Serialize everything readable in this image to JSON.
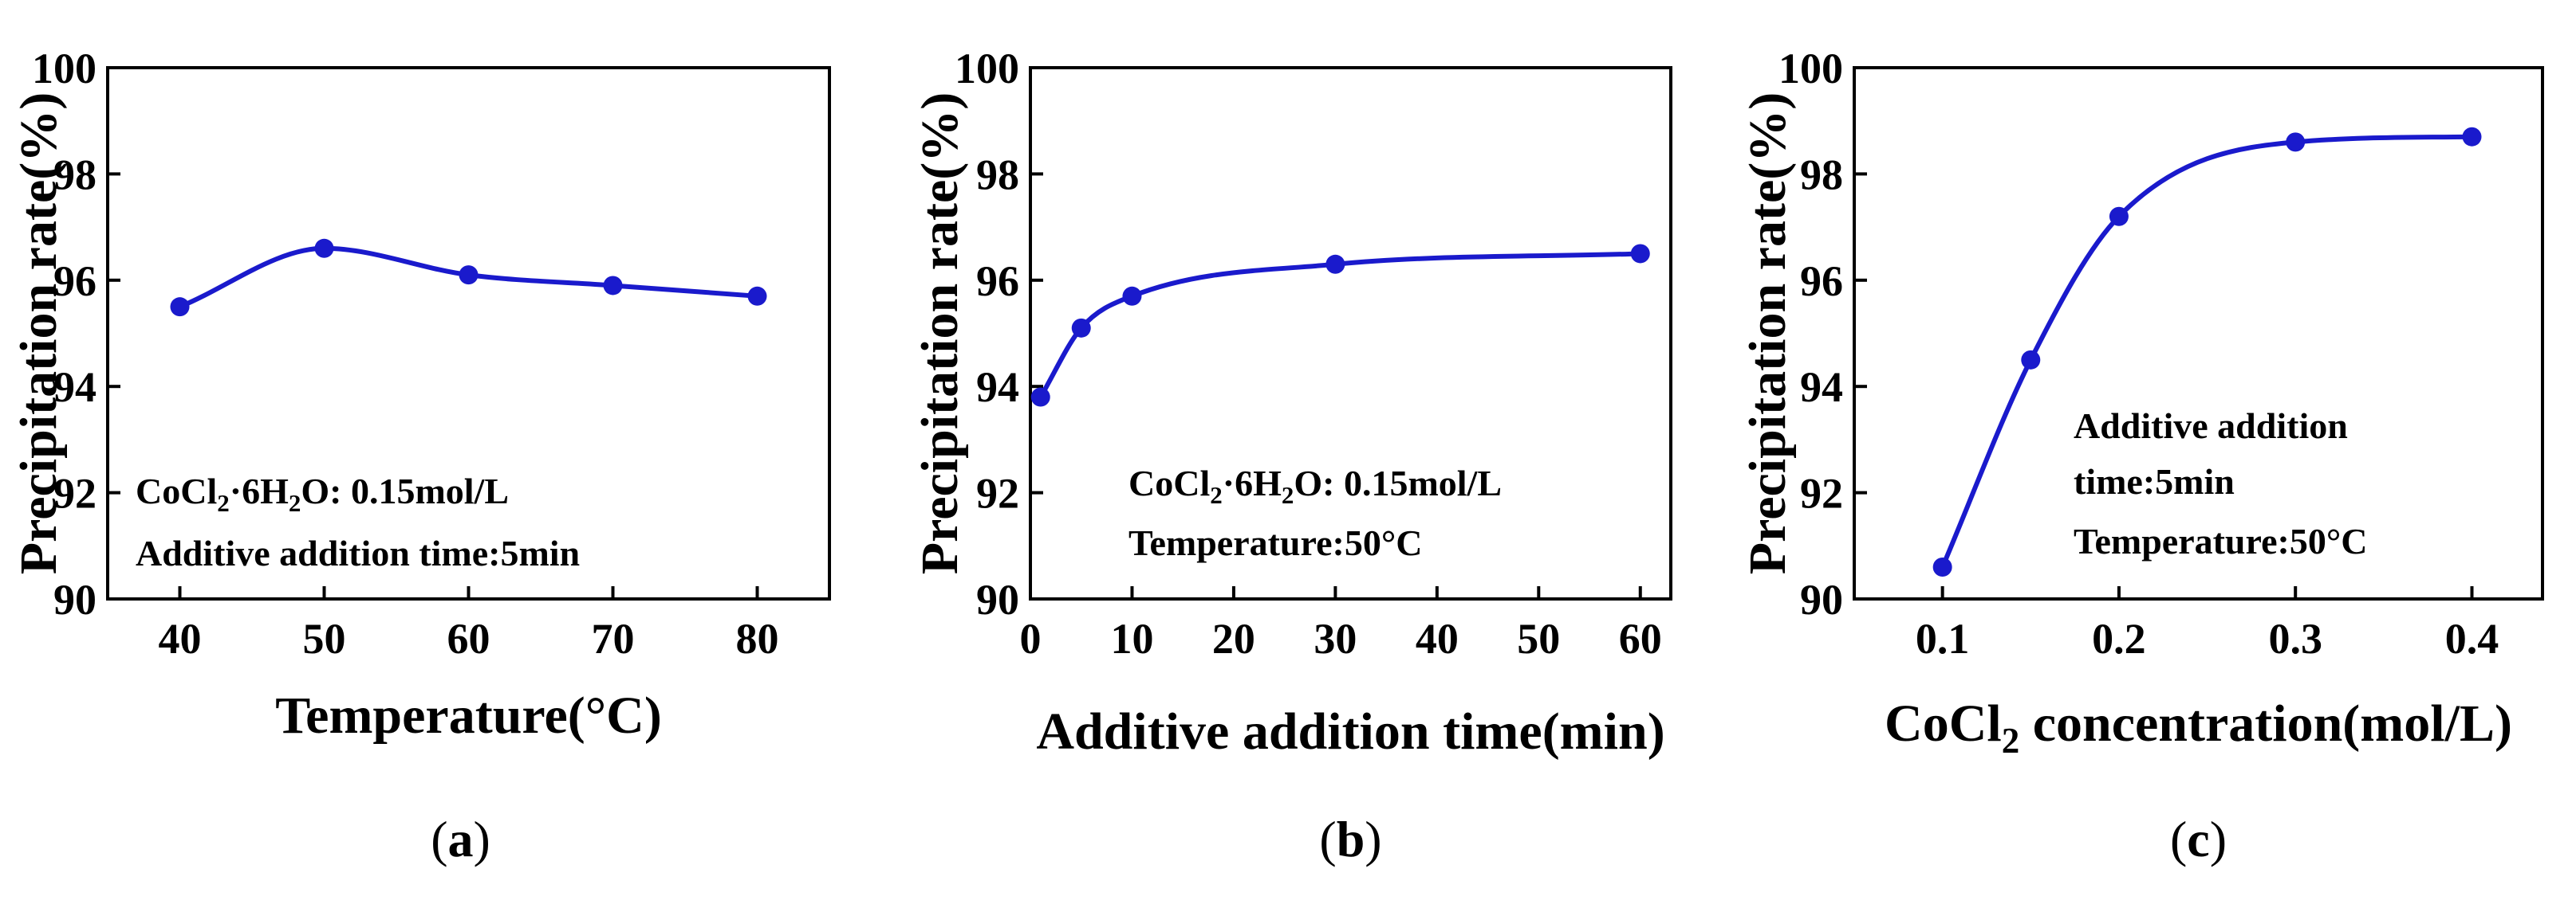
{
  "colors": {
    "series": "#1a1acc",
    "axis": "#000000"
  },
  "chart_data": [
    {
      "type": "line",
      "panel_label": "(a)",
      "x": [
        40,
        50,
        60,
        70,
        80
      ],
      "series": [
        {
          "values": [
            95.5,
            96.6,
            96.1,
            95.9,
            95.7
          ]
        }
      ],
      "xlabel": "Temperature(°C)",
      "ylabel": "Precipitation rate(%)",
      "xlim": [
        35,
        85
      ],
      "ylim": [
        90,
        100
      ],
      "xticks": [
        40,
        50,
        60,
        70,
        80
      ],
      "xtick_labels": [
        "40",
        "50",
        "60",
        "70",
        "80"
      ],
      "yticks": [
        90,
        92,
        94,
        96,
        98,
        100
      ],
      "ytick_labels": [
        "90",
        "92",
        "94",
        "96",
        "98",
        "100"
      ],
      "annotation": [
        {
          "main": "CoCl",
          "sub": "2",
          "rest": "·6H",
          "sub2": "2",
          "rest2": "O: 0.15mol/L"
        },
        {
          "main": "Additive addition time:5min"
        }
      ],
      "grid": false
    },
    {
      "type": "line",
      "panel_label": "(b)",
      "x": [
        1,
        5,
        10,
        30,
        60
      ],
      "series": [
        {
          "values": [
            93.8,
            95.1,
            95.7,
            96.3,
            96.5
          ]
        }
      ],
      "xlabel": "Additive addition time(min)",
      "ylabel": "Precipitation rate(%)",
      "xlim": [
        0,
        63
      ],
      "ylim": [
        90,
        100
      ],
      "xticks": [
        0,
        10,
        20,
        30,
        40,
        50,
        60
      ],
      "xtick_labels": [
        "0",
        "10",
        "20",
        "30",
        "40",
        "50",
        "60"
      ],
      "yticks": [
        90,
        92,
        94,
        96,
        98,
        100
      ],
      "ytick_labels": [
        "90",
        "92",
        "94",
        "96",
        "98",
        "100"
      ],
      "annotation": [
        {
          "main": "CoCl",
          "sub": "2",
          "rest": "·6H",
          "sub2": "2",
          "rest2": "O: 0.15mol/L"
        },
        {
          "main": "Temperature:50°C"
        }
      ],
      "grid": false
    },
    {
      "type": "line",
      "panel_label": "(c)",
      "x": [
        0.1,
        0.15,
        0.2,
        0.3,
        0.4
      ],
      "series": [
        {
          "values": [
            90.6,
            94.5,
            97.2,
            98.6,
            98.7
          ]
        }
      ],
      "xlabel_parts": {
        "main": "CoCl",
        "sub": "2",
        "rest": " concentration(mol/L)"
      },
      "ylabel": "Precipitation rate(%)",
      "xlim": [
        0.05,
        0.44
      ],
      "ylim": [
        90,
        100
      ],
      "xticks": [
        0.1,
        0.2,
        0.3,
        0.4
      ],
      "xtick_labels": [
        "0.1",
        "0.2",
        "0.3",
        "0.4"
      ],
      "yticks": [
        90,
        92,
        94,
        96,
        98,
        100
      ],
      "ytick_labels": [
        "90",
        "92",
        "94",
        "96",
        "98",
        "100"
      ],
      "annotation": [
        {
          "main": "Additive addition"
        },
        {
          "main": "time:5min"
        },
        {
          "main": "Temperature:50°C"
        }
      ],
      "grid": false
    }
  ]
}
